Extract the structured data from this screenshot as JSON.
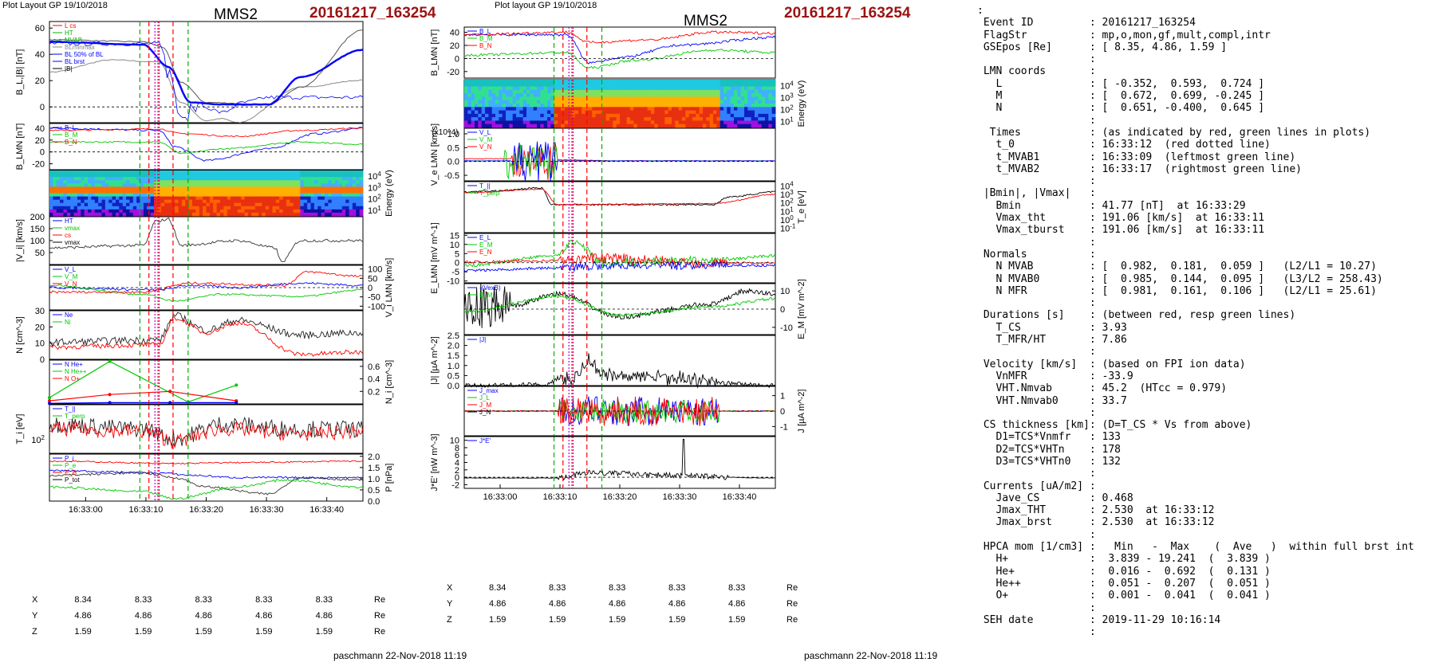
{
  "left_header": "Plot Layout GP 19/10/2018",
  "mid_header": "Plot layout GP 19/10/2018",
  "spacecraft": "MMS2",
  "event_title": "20161217_163254",
  "footer": "paschmann 22-Nov-2018 11:19",
  "coords_left": {
    "ticks": [
      "16:33:00",
      "16:33:10",
      "16:33:20",
      "16:33:30",
      "16:33:40"
    ],
    "rows": [
      {
        "label": "X",
        "values": [
          "8.34",
          "8.33",
          "8.33",
          "8.33",
          "8.33"
        ],
        "unit": "Re"
      },
      {
        "label": "Y",
        "values": [
          "4.86",
          "4.86",
          "4.86",
          "4.86",
          "4.86"
        ],
        "unit": "Re"
      },
      {
        "label": "Z",
        "values": [
          "1.59",
          "1.59",
          "1.59",
          "1.59",
          "1.59"
        ],
        "unit": "Re"
      }
    ]
  },
  "coords_mid": {
    "ticks": [
      "16:33:00",
      "16:33:10",
      "16:33:20",
      "16:33:30",
      "16:33:40"
    ],
    "rows": [
      {
        "label": "X",
        "values": [
          "8.34",
          "8.33",
          "8.33",
          "8.33",
          "8.33"
        ],
        "unit": "Re"
      },
      {
        "label": "Y",
        "values": [
          "4.86",
          "4.86",
          "4.86",
          "4.86",
          "4.86"
        ],
        "unit": "Re"
      },
      {
        "label": "Z",
        "values": [
          "1.59",
          "1.59",
          "1.59",
          "1.59",
          "1.59"
        ],
        "unit": "Re"
      }
    ]
  },
  "colors": {
    "L": "#ff0000",
    "M": "#00c800",
    "N": "#0000ff",
    "title_red": "#9b1212",
    "green_line": "#00b000",
    "red_line": "#ff0000",
    "magenta_line": "#c800c8"
  },
  "chart_data": [
    {
      "type": "line",
      "x_range": [
        "16:32:54",
        "16:33:46"
      ],
      "markers": {
        "red_dotted": "16:33:12",
        "green_left": "16:33:09",
        "green_right": "16:33:17",
        "red_dashed": [
          "16:33:10.5",
          "16:33:14.5"
        ],
        "magenta": [
          "16:33:11.5",
          "16:33:12.2"
        ]
      },
      "panels": [
        {
          "id": "L1",
          "ylabel": "B_L,|B| [nT]",
          "ylim": [
            -12,
            65
          ],
          "ticks": [
            "60",
            "40",
            "20",
            "0"
          ],
          "tickvals": [
            60,
            40,
            20,
            0
          ],
          "side": "left",
          "legend": [
            "L cs",
            "HT",
            "MVAB",
            "BLminmax",
            "BL 50% of BL",
            "BL brst",
            "|B|"
          ],
          "legend_colors": [
            "#ff0000",
            "#00b000",
            "#00b000",
            "#888",
            "#0000ff",
            "#0000ff",
            "#000"
          ]
        },
        {
          "id": "L2",
          "ylabel": "B_LMN [nT]",
          "ylim": [
            -30,
            48
          ],
          "ticks": [
            "40",
            "20",
            "0",
            "-20"
          ],
          "tickvals": [
            40,
            20,
            0,
            -20
          ],
          "side": "left",
          "legend": [
            "B_L",
            "B_M",
            "B_N"
          ]
        },
        {
          "id": "L3",
          "ylabel": "Energy (eV)",
          "ticks": [
            "10^4",
            "10^3",
            "10^2",
            "10^1"
          ],
          "side": "right",
          "kind": "spectrogram"
        },
        {
          "id": "L4",
          "ylabel": "|V_i| [km/s]",
          "ylim": [
            0,
            200
          ],
          "ticks": [
            "200",
            "150",
            "100",
            "50"
          ],
          "tickvals": [
            200,
            150,
            100,
            50
          ],
          "side": "left",
          "legend": [
            "HT",
            "vmax",
            "cs",
            "vmax"
          ]
        },
        {
          "id": "L5",
          "ylabel": "V_i LMN [km/s]",
          "ylim": [
            -120,
            120
          ],
          "ticks": [
            "100",
            "50",
            "0",
            "-50",
            "-100"
          ],
          "tickvals": [
            100,
            50,
            0,
            -50,
            -100
          ],
          "side": "right",
          "legend": [
            "V_L",
            "V_M",
            "V_N"
          ]
        },
        {
          "id": "L6",
          "ylabel": "N [cm^-3]",
          "ylim": [
            0,
            30
          ],
          "ticks": [
            "30",
            "20",
            "10",
            "0"
          ],
          "tickvals": [
            30,
            20,
            10,
            0
          ],
          "side": "left",
          "legend": [
            "Ne",
            "Ni"
          ]
        },
        {
          "id": "L7",
          "ylabel": "N_i [cm^-3]",
          "ylim": [
            0,
            0.7
          ],
          "ticks": [
            "0.6",
            "0.4",
            "0.2"
          ],
          "tickvals": [
            0.6,
            0.4,
            0.2
          ],
          "side": "right",
          "legend": [
            "N He+",
            "N He++",
            "N O+"
          ],
          "series": [
            {
              "name": "N He+",
              "color": "#00c800",
              "x": [
                "16:32:54",
                "16:33:04",
                "16:33:17",
                "16:33:25"
              ],
              "values": [
                0.1,
                0.68,
                0.03,
                0.3
              ]
            },
            {
              "name": "N He++",
              "color": "#ff0000",
              "x": [
                "16:32:54",
                "16:33:04",
                "16:33:14",
                "16:33:25"
              ],
              "values": [
                0.05,
                0.15,
                0.2,
                0.05
              ]
            },
            {
              "name": "N O+",
              "color": "#0000ff",
              "x": [
                "16:32:54",
                "16:33:04",
                "16:33:14",
                "16:33:25"
              ],
              "values": [
                0.01,
                0.02,
                0.02,
                0.02
              ]
            }
          ]
        },
        {
          "id": "L8",
          "ylabel": "T_i [eV]",
          "ticks": [
            "10^2"
          ],
          "side": "left",
          "legend": [
            "T_||",
            "T_perp"
          ]
        },
        {
          "id": "L9",
          "ylabel": "P [nPa]",
          "ylim": [
            0,
            2.1
          ],
          "ticks": [
            "2.0",
            "1.5",
            "1.0",
            "0.5",
            "0.0"
          ],
          "tickvals": [
            2.0,
            1.5,
            1.0,
            0.5,
            0.0
          ],
          "side": "right",
          "legend": [
            "P_i",
            "P_e",
            "P_B",
            "P_tot"
          ]
        }
      ]
    },
    {
      "type": "line",
      "x_range": [
        "16:32:54",
        "16:33:46"
      ],
      "panels": [
        {
          "id": "M1",
          "ylabel": "B_LMN [nT]",
          "ylim": [
            -30,
            48
          ],
          "ticks": [
            "40",
            "20",
            "0",
            "-20"
          ],
          "tickvals": [
            40,
            20,
            0,
            -20
          ],
          "side": "left",
          "legend": [
            "B_L",
            "B_M",
            "B_N"
          ]
        },
        {
          "id": "M2",
          "ylabel": "Energy (eV)",
          "ticks": [
            "10^4",
            "10^3",
            "10^2",
            "10^1"
          ],
          "side": "right",
          "kind": "spectrogram"
        },
        {
          "id": "M3",
          "ylabel": "V_e LMN [km/s]",
          "yscale_note": "(x10^4)",
          "ylim": [
            -0.7,
            1.2
          ],
          "ticks": [
            "1.0",
            "0.5",
            "0.0",
            "-0.5"
          ],
          "tickvals": [
            1.0,
            0.5,
            0.0,
            -0.5
          ],
          "side": "left",
          "legend": [
            "V_L",
            "V_M",
            "V_N"
          ]
        },
        {
          "id": "M4",
          "ylabel": "T_e [eV]",
          "ticks": [
            "10^4",
            "10^3",
            "10^2",
            "10^1",
            "10^0",
            "10^-1"
          ],
          "side": "right",
          "legend": [
            "T_||",
            "T_perp"
          ]
        },
        {
          "id": "M5",
          "ylabel": "E_LMN [mV m^-1]",
          "ylim": [
            -11,
            16
          ],
          "ticks": [
            "15",
            "10",
            "5",
            "0",
            "-5",
            "-10"
          ],
          "tickvals": [
            15,
            10,
            5,
            0,
            -5,
            -10
          ],
          "side": "left",
          "legend": [
            "E_L",
            "E_M",
            "E_N"
          ]
        },
        {
          "id": "M6",
          "ylabel": "E_M [mV m^-2]",
          "ylim": [
            -14,
            14
          ],
          "ticks": [
            "10",
            "0",
            "-10"
          ],
          "tickvals": [
            10,
            0,
            -10
          ],
          "side": "right",
          "legend": [
            "-(VexB)",
            "E_M"
          ]
        },
        {
          "id": "M7",
          "ylabel": "|J| [µA m^-2]",
          "ylim": [
            0,
            2.5
          ],
          "ticks": [
            "2.5",
            "2.0",
            "1.5",
            "1.0",
            "0.5",
            "0.0"
          ],
          "tickvals": [
            2.5,
            2.0,
            1.5,
            1.0,
            0.5,
            0.0
          ],
          "side": "left",
          "legend": [
            "|J|"
          ]
        },
        {
          "id": "M8",
          "ylabel": "J [µA m^-2]",
          "ylim": [
            -1.6,
            1.6
          ],
          "ticks": [
            "1",
            "0",
            "-1"
          ],
          "tickvals": [
            1,
            0,
            -1
          ],
          "side": "right",
          "legend": [
            "J_max",
            "J_L",
            "J_M",
            "J_N"
          ]
        },
        {
          "id": "M9",
          "ylabel": "J*E' [nW m^-3]",
          "ylim": [
            -3,
            11
          ],
          "ticks": [
            "10",
            "8",
            "6",
            "4",
            "2",
            "0",
            "-2"
          ],
          "tickvals": [
            10,
            8,
            6,
            4,
            2,
            0,
            -2
          ],
          "side": "left",
          "legend": [
            "J*E'"
          ]
        }
      ]
    }
  ],
  "info_rows": [
    {
      "k": "Event ID",
      "v": "20161217_163254"
    },
    {
      "k": "FlagStr",
      "v": "mp,o,mon,gf,mult,compl,intr"
    },
    {
      "k": "GSEpos [Re]",
      "v": "[ 8.35, 4.86, 1.59 ]"
    },
    {
      "k": "",
      "v": ""
    },
    {
      "k": "LMN coords",
      "v": ""
    },
    {
      "k": "  L",
      "v": "[ -0.352,  0.593,  0.724 ]"
    },
    {
      "k": "  M",
      "v": "[  0.672,  0.699, -0.245 ]"
    },
    {
      "k": "  N",
      "v": "[  0.651, -0.400,  0.645 ]"
    },
    {
      "k": "",
      "v": ""
    },
    {
      "k": " Times",
      "v": "(as indicated by red, green lines in plots)"
    },
    {
      "k": "  t_0",
      "v": "16:33:12  (red dotted line)"
    },
    {
      "k": "  t_MVAB1",
      "v": "16:33:09  (leftmost green line)"
    },
    {
      "k": "  t_MVAB2",
      "v": "16:33:17  (rightmost green line)"
    },
    {
      "k": "",
      "v": ""
    },
    {
      "k": "|Bmin|, |Vmax|",
      "v": ""
    },
    {
      "k": "  Bmin",
      "v": "41.77 [nT]  at 16:33:29"
    },
    {
      "k": "  Vmax_tht",
      "v": "191.06 [km/s]  at 16:33:11"
    },
    {
      "k": "  Vmax_tburst",
      "v": "191.06 [km/s]  at 16:33:11"
    },
    {
      "k": "",
      "v": ""
    },
    {
      "k": "Normals",
      "v": ""
    },
    {
      "k": "  N MVAB",
      "v": "[  0.982,  0.181,  0.059 ]   (L2/L1 = 10.27)"
    },
    {
      "k": "  N MVAB0",
      "v": "[  0.985,  0.144,  0.095 ]   (L3/L2 = 258.43)"
    },
    {
      "k": "  N MFR",
      "v": "[  0.981,  0.161,  0.106 ]   (L2/L1 = 25.61)"
    },
    {
      "k": "",
      "v": ""
    },
    {
      "k": "Durations [s]",
      "v": "(between red, resp green lines)"
    },
    {
      "k": "  T_CS",
      "v": "3.93"
    },
    {
      "k": "  T_MFR/HT",
      "v": "7.86"
    },
    {
      "k": "",
      "v": ""
    },
    {
      "k": "Velocity [km/s]",
      "v": "(based on FPI ion data)"
    },
    {
      "k": "  VnMFR",
      "v": "-33.9"
    },
    {
      "k": "  VHT.Nmvab",
      "v": "45.2  (HTcc = 0.979)"
    },
    {
      "k": "  VHT.Nmvab0",
      "v": "33.7"
    },
    {
      "k": "",
      "v": ""
    },
    {
      "k": "CS thickness [km]",
      "v": "(D=T_CS * Vs from above)"
    },
    {
      "k": "  D1=TCS*Vnmfr",
      "v": "133"
    },
    {
      "k": "  D2=TCS*VHTn",
      "v": "178"
    },
    {
      "k": "  D3=TCS*VHTn0",
      "v": "132"
    },
    {
      "k": "",
      "v": ""
    },
    {
      "k": "Currents [uA/m2]",
      "v": ""
    },
    {
      "k": "  Jave_CS",
      "v": "0.468"
    },
    {
      "k": "  Jmax_THT",
      "v": "2.530  at 16:33:12"
    },
    {
      "k": "  Jmax_brst",
      "v": "2.530  at 16:33:12"
    },
    {
      "k": "",
      "v": ""
    },
    {
      "k": "HPCA mom [1/cm3]",
      "v": "  Min   -  Max    (  Ave   )  within full brst int"
    },
    {
      "k": "  H+",
      "v": " 3.839 - 19.241  (  3.839 )"
    },
    {
      "k": "  He+",
      "v": " 0.016 -  0.692  (  0.131 )"
    },
    {
      "k": "  He++",
      "v": " 0.051 -  0.207  (  0.051 )"
    },
    {
      "k": "  O+",
      "v": " 0.001 -  0.041  (  0.041 )"
    },
    {
      "k": "",
      "v": ""
    },
    {
      "k": "SEH date",
      "v": "2019-11-29 10:16:14"
    },
    {
      "k": "",
      "v": ""
    }
  ]
}
